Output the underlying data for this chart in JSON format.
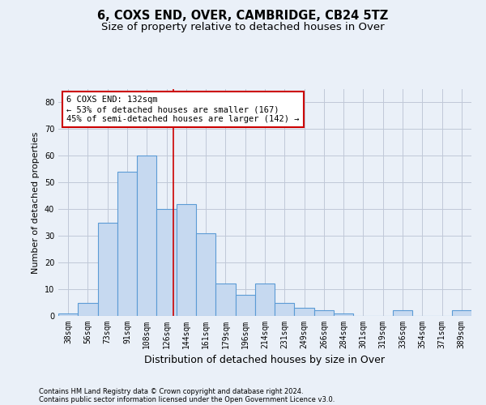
{
  "title": "6, COXS END, OVER, CAMBRIDGE, CB24 5TZ",
  "subtitle": "Size of property relative to detached houses in Over",
  "xlabel": "Distribution of detached houses by size in Over",
  "ylabel": "Number of detached properties",
  "categories": [
    "38sqm",
    "56sqm",
    "73sqm",
    "91sqm",
    "108sqm",
    "126sqm",
    "144sqm",
    "161sqm",
    "179sqm",
    "196sqm",
    "214sqm",
    "231sqm",
    "249sqm",
    "266sqm",
    "284sqm",
    "301sqm",
    "319sqm",
    "336sqm",
    "354sqm",
    "371sqm",
    "389sqm"
  ],
  "values": [
    1,
    5,
    35,
    54,
    60,
    40,
    42,
    31,
    12,
    8,
    12,
    5,
    3,
    2,
    1,
    0,
    0,
    2,
    0,
    0,
    2
  ],
  "bar_color": "#c6d9f0",
  "bar_edge_color": "#5b9bd5",
  "bar_edge_width": 0.8,
  "grid_color": "#c0c8d8",
  "background_color": "#eaf0f8",
  "red_line_x": 5.33,
  "annotation_text": "6 COXS END: 132sqm\n← 53% of detached houses are smaller (167)\n45% of semi-detached houses are larger (142) →",
  "annotation_box_color": "#ffffff",
  "annotation_box_edge": "#cc0000",
  "footer_line1": "Contains HM Land Registry data © Crown copyright and database right 2024.",
  "footer_line2": "Contains public sector information licensed under the Open Government Licence v3.0.",
  "ylim": [
    0,
    85
  ],
  "yticks": [
    0,
    10,
    20,
    30,
    40,
    50,
    60,
    70,
    80
  ],
  "title_fontsize": 10.5,
  "subtitle_fontsize": 9.5,
  "xlabel_fontsize": 9,
  "ylabel_fontsize": 8,
  "tick_fontsize": 7,
  "annotation_fontsize": 7.5,
  "footer_fontsize": 6
}
